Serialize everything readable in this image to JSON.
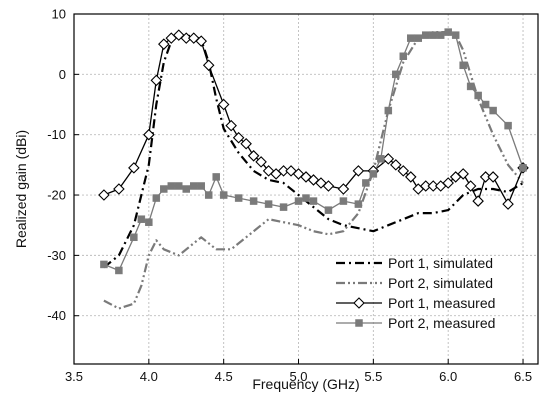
{
  "chart_data": {
    "type": "line",
    "xlabel": "Frequency (GHz)",
    "ylabel": "Realized gain (dBi)",
    "xlim": [
      3.5,
      6.6
    ],
    "ylim": [
      -48,
      10
    ],
    "xticks": [
      "3.5",
      "4.0",
      "4.5",
      "5.0",
      "5.5",
      "6.0",
      "6.5"
    ],
    "xtick_values": [
      3.5,
      4.0,
      4.5,
      5.0,
      5.5,
      6.0,
      6.5
    ],
    "yticks": [
      "10",
      "0",
      "-10",
      "-20",
      "-30",
      "-40"
    ],
    "ytick_values": [
      10,
      0,
      -10,
      -20,
      -30,
      -40
    ],
    "grid": true,
    "legend_position": "bottom-right",
    "series": [
      {
        "name": "Port 1, simulated",
        "style": "dash-dot",
        "color": "#000000",
        "marker": "none",
        "points": [
          [
            3.7,
            -32
          ],
          [
            3.8,
            -30
          ],
          [
            3.9,
            -25
          ],
          [
            4.0,
            -15
          ],
          [
            4.05,
            -5
          ],
          [
            4.1,
            2
          ],
          [
            4.15,
            5.5
          ],
          [
            4.2,
            6.5
          ],
          [
            4.3,
            6.3
          ],
          [
            4.35,
            5.8
          ],
          [
            4.4,
            2
          ],
          [
            4.45,
            -4
          ],
          [
            4.5,
            -9
          ],
          [
            4.6,
            -13
          ],
          [
            4.7,
            -16
          ],
          [
            4.8,
            -17.5
          ],
          [
            4.9,
            -18
          ],
          [
            5.0,
            -20
          ],
          [
            5.1,
            -22
          ],
          [
            5.2,
            -24
          ],
          [
            5.3,
            -25
          ],
          [
            5.4,
            -25.5
          ],
          [
            5.5,
            -26
          ],
          [
            5.6,
            -25
          ],
          [
            5.7,
            -24
          ],
          [
            5.8,
            -23
          ],
          [
            5.9,
            -23
          ],
          [
            6.0,
            -22.5
          ],
          [
            6.1,
            -20
          ],
          [
            6.2,
            -19
          ],
          [
            6.3,
            -19
          ],
          [
            6.4,
            -19.5
          ],
          [
            6.5,
            -18
          ]
        ]
      },
      {
        "name": "Port 2, simulated",
        "style": "dash-dot-dot",
        "color": "#7a7a7a",
        "marker": "none",
        "points": [
          [
            3.7,
            -37.5
          ],
          [
            3.8,
            -38.8
          ],
          [
            3.9,
            -38
          ],
          [
            3.95,
            -35
          ],
          [
            4.0,
            -30
          ],
          [
            4.05,
            -27.5
          ],
          [
            4.1,
            -29
          ],
          [
            4.2,
            -30
          ],
          [
            4.3,
            -28
          ],
          [
            4.35,
            -27
          ],
          [
            4.45,
            -29
          ],
          [
            4.55,
            -29
          ],
          [
            4.65,
            -27
          ],
          [
            4.8,
            -24
          ],
          [
            5.0,
            -25
          ],
          [
            5.1,
            -26
          ],
          [
            5.2,
            -26.5
          ],
          [
            5.3,
            -26
          ],
          [
            5.4,
            -23
          ],
          [
            5.5,
            -16
          ],
          [
            5.6,
            -6
          ],
          [
            5.7,
            2
          ],
          [
            5.8,
            6
          ],
          [
            5.9,
            7
          ],
          [
            6.0,
            7
          ],
          [
            6.05,
            6.5
          ],
          [
            6.1,
            4
          ],
          [
            6.15,
            0
          ],
          [
            6.2,
            -4
          ],
          [
            6.3,
            -10
          ],
          [
            6.4,
            -15
          ],
          [
            6.5,
            -18
          ]
        ]
      },
      {
        "name": "Port 1, measured",
        "style": "solid",
        "color": "#000000",
        "marker": "diamond",
        "points": [
          [
            3.7,
            -20
          ],
          [
            3.8,
            -19
          ],
          [
            3.9,
            -15.5
          ],
          [
            4.0,
            -10
          ],
          [
            4.05,
            -1
          ],
          [
            4.1,
            5
          ],
          [
            4.15,
            6
          ],
          [
            4.2,
            6.5
          ],
          [
            4.25,
            6
          ],
          [
            4.3,
            6
          ],
          [
            4.35,
            5.5
          ],
          [
            4.4,
            1.5
          ],
          [
            4.5,
            -5
          ],
          [
            4.55,
            -8.5
          ],
          [
            4.6,
            -10.5
          ],
          [
            4.65,
            -11.5
          ],
          [
            4.7,
            -13.5
          ],
          [
            4.75,
            -14.5
          ],
          [
            4.8,
            -16
          ],
          [
            4.85,
            -16.5
          ],
          [
            4.9,
            -16
          ],
          [
            4.95,
            -16
          ],
          [
            5.0,
            -16.5
          ],
          [
            5.05,
            -17
          ],
          [
            5.1,
            -17.5
          ],
          [
            5.15,
            -18
          ],
          [
            5.2,
            -18.5
          ],
          [
            5.3,
            -19
          ],
          [
            5.4,
            -16
          ],
          [
            5.5,
            -16
          ],
          [
            5.6,
            -14
          ],
          [
            5.65,
            -15
          ],
          [
            5.7,
            -16
          ],
          [
            5.75,
            -17
          ],
          [
            5.8,
            -19
          ],
          [
            5.85,
            -18.5
          ],
          [
            5.9,
            -18.5
          ],
          [
            5.95,
            -18.5
          ],
          [
            6.0,
            -18
          ],
          [
            6.05,
            -17
          ],
          [
            6.1,
            -16.5
          ],
          [
            6.15,
            -18.5
          ],
          [
            6.2,
            -21
          ],
          [
            6.25,
            -17
          ],
          [
            6.3,
            -17
          ],
          [
            6.4,
            -21.5
          ],
          [
            6.5,
            -15.5
          ]
        ]
      },
      {
        "name": "Port 2, measured",
        "style": "solid",
        "color": "#7a7a7a",
        "marker": "square",
        "points": [
          [
            3.7,
            -31.5
          ],
          [
            3.8,
            -32.5
          ],
          [
            3.9,
            -27
          ],
          [
            3.95,
            -24
          ],
          [
            4.0,
            -24.5
          ],
          [
            4.05,
            -20.5
          ],
          [
            4.1,
            -19
          ],
          [
            4.15,
            -18.5
          ],
          [
            4.2,
            -18.5
          ],
          [
            4.25,
            -19
          ],
          [
            4.3,
            -18.5
          ],
          [
            4.35,
            -18.5
          ],
          [
            4.4,
            -20
          ],
          [
            4.45,
            -17
          ],
          [
            4.5,
            -20
          ],
          [
            4.6,
            -20.5
          ],
          [
            4.7,
            -21
          ],
          [
            4.8,
            -21.5
          ],
          [
            4.9,
            -22
          ],
          [
            5.0,
            -21
          ],
          [
            5.05,
            -20.5
          ],
          [
            5.1,
            -21
          ],
          [
            5.2,
            -22.5
          ],
          [
            5.3,
            -21
          ],
          [
            5.4,
            -21.5
          ],
          [
            5.45,
            -18
          ],
          [
            5.5,
            -16.5
          ],
          [
            5.55,
            -14
          ],
          [
            5.6,
            -6
          ],
          [
            5.65,
            0
          ],
          [
            5.7,
            3
          ],
          [
            5.75,
            6
          ],
          [
            5.8,
            6
          ],
          [
            5.85,
            6.5
          ],
          [
            5.9,
            6.5
          ],
          [
            5.95,
            6.5
          ],
          [
            6.0,
            7
          ],
          [
            6.05,
            6.5
          ],
          [
            6.1,
            1.5
          ],
          [
            6.15,
            -2
          ],
          [
            6.2,
            -3.5
          ],
          [
            6.25,
            -5
          ],
          [
            6.3,
            -6
          ],
          [
            6.4,
            -8.5
          ],
          [
            6.5,
            -15.5
          ]
        ]
      }
    ]
  }
}
